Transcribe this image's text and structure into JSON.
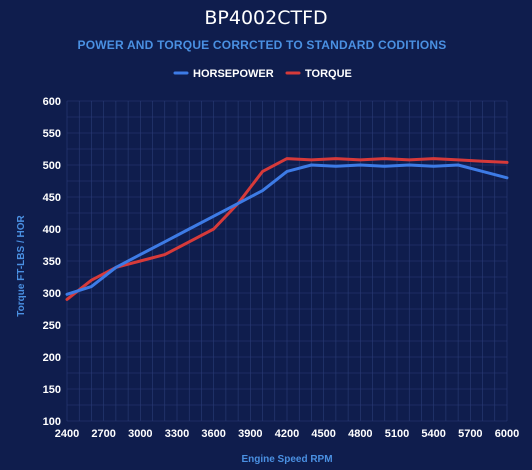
{
  "chart_data": {
    "type": "line",
    "title": "BP4002CTFD",
    "subtitle": "POWER AND TORQUE CORRCTED TO STANDARD CODITIONS",
    "xlabel": "Engine Speed RPM",
    "ylabel": "Torque FT-LBS / HOR",
    "xlim": [
      2400,
      6000
    ],
    "ylim": [
      100,
      600
    ],
    "x_ticks": [
      "2400",
      "2700",
      "3000",
      "3300",
      "3600",
      "3900",
      "4200",
      "4500",
      "4800",
      "5100",
      "5400",
      "5700",
      "6000"
    ],
    "y_ticks": [
      "100",
      "150",
      "200",
      "250",
      "300",
      "350",
      "400",
      "450",
      "500",
      "550",
      "600"
    ],
    "grid": true,
    "legend_position": "top-center",
    "x": [
      2400,
      2600,
      2800,
      3000,
      3200,
      3400,
      3600,
      3800,
      4000,
      4200,
      4400,
      4600,
      4800,
      5000,
      5200,
      5400,
      5600,
      5800,
      6000
    ],
    "series": [
      {
        "name": "HORSEPOWER",
        "color": "#3d7be6",
        "values": [
          298,
          310,
          340,
          360,
          380,
          400,
          420,
          440,
          460,
          490,
          500,
          498,
          500,
          498,
          500,
          498,
          500,
          490,
          480
        ]
      },
      {
        "name": "TORQUE",
        "color": "#d63a3a",
        "values": [
          290,
          320,
          340,
          350,
          360,
          380,
          400,
          440,
          490,
          510,
          508,
          510,
          508,
          510,
          508,
          510,
          508,
          506,
          504
        ]
      }
    ],
    "colors": {
      "background": "#0f1d4d",
      "grid": "#2b3d78",
      "title": "#ffffff",
      "accent_text": "#4a90e2"
    }
  }
}
